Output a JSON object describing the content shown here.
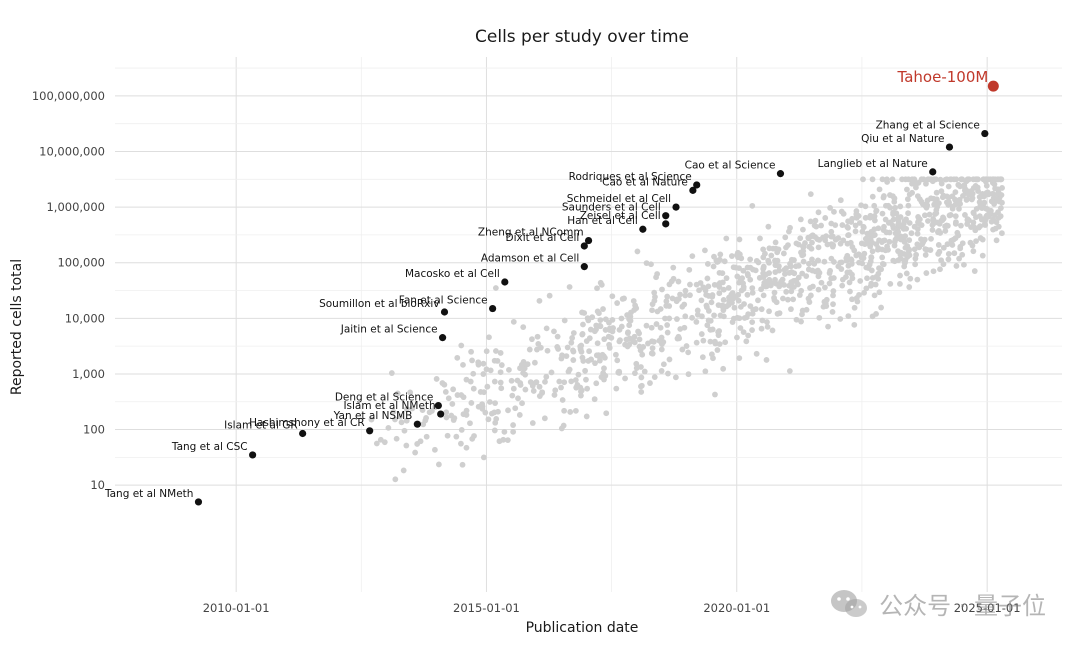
{
  "chart_data": {
    "type": "scatter",
    "title": "Cells per study over time",
    "xlabel": "Publication date",
    "ylabel": "Reported cells total",
    "y_scale": "log",
    "xlim": [
      "2007-08-01",
      "2026-07-01"
    ],
    "ylim": [
      0.12,
      500000000
    ],
    "x_ticks": [
      "2010-01-01",
      "2015-01-01",
      "2020-01-01",
      "2025-01-01"
    ],
    "y_ticks": [
      {
        "value": 10,
        "label": "10"
      },
      {
        "value": 100,
        "label": "100"
      },
      {
        "value": 1000,
        "label": "1,000"
      },
      {
        "value": 10000,
        "label": "10,000"
      },
      {
        "value": 100000,
        "label": "100,000"
      },
      {
        "value": 1000000,
        "label": "1,000,000"
      },
      {
        "value": 10000000,
        "label": "10,000,000"
      },
      {
        "value": 100000000,
        "label": "100,000,000"
      }
    ],
    "grid": true,
    "colors": {
      "labeled": "#111111",
      "background": "#cfcfcf",
      "highlight": "#c0392b"
    },
    "labeled_points": [
      {
        "label": "Tang et al NMeth",
        "date": "2009-04-01",
        "y": 5
      },
      {
        "label": "Tang et al CSC",
        "date": "2010-05-01",
        "y": 35
      },
      {
        "label": "Islam et al GR",
        "date": "2011-05-01",
        "y": 85
      },
      {
        "label": "Hashimshony et al CR",
        "date": "2012-09-01",
        "y": 95
      },
      {
        "label": "Yan et al NSMB",
        "date": "2013-08-15",
        "y": 125
      },
      {
        "label": "Islam et al NMeth",
        "date": "2014-02-01",
        "y": 190
      },
      {
        "label": "Deng et al Science",
        "date": "2014-01-15",
        "y": 270
      },
      {
        "label": "Jaitin et al Science",
        "date": "2014-02-15",
        "y": 4500
      },
      {
        "label": "Soumillon et al bioRxiv",
        "date": "2014-03-01",
        "y": 13000
      },
      {
        "label": "Fan et al Science",
        "date": "2015-02-15",
        "y": 15000
      },
      {
        "label": "Macosko et al Cell",
        "date": "2015-05-15",
        "y": 45000
      },
      {
        "label": "Adamson et al Cell",
        "date": "2016-12-15",
        "y": 85000
      },
      {
        "label": "Dixit et al Cell",
        "date": "2016-12-15",
        "y": 200000
      },
      {
        "label": "Zheng et al NComm",
        "date": "2017-01-15",
        "y": 250000
      },
      {
        "label": "Han et al Cell",
        "date": "2018-02-15",
        "y": 400000
      },
      {
        "label": "Zeisel et al Cell",
        "date": "2018-08-01",
        "y": 500000
      },
      {
        "label": "Saunders et al Cell",
        "date": "2018-08-01",
        "y": 700000
      },
      {
        "label": "Schmeidel et al Cell",
        "date": "2018-10-15",
        "y": 1000000
      },
      {
        "label": "Cao et al Nature",
        "date": "2019-02-15",
        "y": 2000000
      },
      {
        "label": "Rodriques et al Science",
        "date": "2019-03-15",
        "y": 2500000
      },
      {
        "label": "Cao et al Science",
        "date": "2020-11-15",
        "y": 4000000
      },
      {
        "label": "Langlieb et al Nature",
        "date": "2023-12-01",
        "y": 4300000
      },
      {
        "label": "Qiu et al Nature",
        "date": "2024-04-01",
        "y": 12000000
      },
      {
        "label": "Zhang et al Science",
        "date": "2024-12-15",
        "y": 21000000
      }
    ],
    "highlight_point": {
      "label": "Tahoe-100M",
      "date": "2025-02-15",
      "y": 150000000
    }
  },
  "watermark": {
    "text": "公众号 · 量子位",
    "icon": "wechat-icon"
  }
}
